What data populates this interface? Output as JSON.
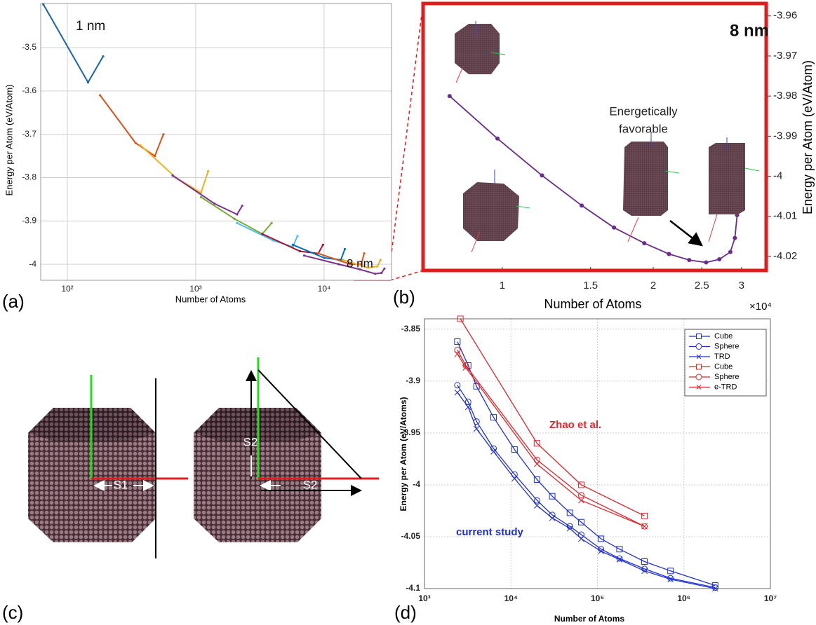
{
  "panel_labels": [
    "(a)",
    "(b)",
    "(c)",
    "(d)"
  ],
  "diagram": {
    "labels": [
      "S1",
      "S2",
      "S2"
    ]
  },
  "chart_data": [
    {
      "type": "line",
      "x_label": "Number of Atoms",
      "y_label": "Energy per Atom (eV/Atom)",
      "xscale": "log",
      "xlim": [
        62,
        33500
      ],
      "ylim": [
        -4.037,
        -3.398
      ],
      "xticks": [
        {
          "value": 100,
          "label": "10²"
        },
        {
          "value": 1000,
          "label": "10³"
        },
        {
          "value": 10000,
          "label": "10⁴"
        }
      ],
      "yticks": [
        -3.5,
        -3.6,
        -3.7,
        -3.8,
        -3.9,
        -4
      ],
      "grid": true,
      "y_axis_side": "left",
      "annotations": [
        {
          "text": "1 nm",
          "color": "#111111"
        },
        {
          "text": "8 nm",
          "color": "#111111"
        }
      ],
      "series": [
        {
          "color": "#1764ab",
          "x": [
            65,
            145,
            190
          ],
          "values": [
            -3.4,
            -3.58,
            -3.52
          ]
        },
        {
          "color": "#d95319",
          "x": [
            180,
            340,
            480,
            560
          ],
          "values": [
            -3.61,
            -3.72,
            -3.75,
            -3.7
          ]
        },
        {
          "color": "#edb120",
          "x": [
            370,
            700,
            1100,
            1250
          ],
          "values": [
            -3.725,
            -3.8,
            -3.835,
            -3.785
          ]
        },
        {
          "color": "#7e2f8e",
          "x": [
            660,
            1400,
            2100,
            2300
          ],
          "values": [
            -3.795,
            -3.86,
            -3.885,
            -3.865
          ]
        },
        {
          "color": "#77ac30",
          "x": [
            1100,
            2000,
            3300,
            3900
          ],
          "values": [
            -3.845,
            -3.895,
            -3.93,
            -3.905
          ]
        },
        {
          "color": "#4dbeee",
          "x": [
            2100,
            4000,
            5700,
            6200
          ],
          "values": [
            -3.905,
            -3.945,
            -3.96,
            -3.935
          ]
        },
        {
          "color": "#a2142f",
          "x": [
            3300,
            6500,
            9000,
            9800
          ],
          "values": [
            -3.93,
            -3.97,
            -3.975,
            -3.955
          ]
        },
        {
          "color": "#0072bd",
          "x": [
            5700,
            10000,
            13500,
            14500
          ],
          "values": [
            -3.955,
            -3.985,
            -3.99,
            -3.965
          ]
        },
        {
          "color": "#d95319",
          "x": [
            9000,
            16000,
            19500,
            20500
          ],
          "values": [
            -3.975,
            -4.0,
            -4.0,
            -3.975
          ]
        },
        {
          "color": "#edb120",
          "x": [
            14000,
            22000,
            26000,
            27500
          ],
          "values": [
            -3.99,
            -4.008,
            -4.005,
            -3.99
          ]
        },
        {
          "color": "#7e2f8e",
          "x": [
            7000,
            13000,
            19000,
            25000,
            28000,
            29500
          ],
          "values": [
            -3.98,
            -4.0,
            -4.012,
            -4.022,
            -4.02,
            -4.01
          ]
        }
      ]
    },
    {
      "type": "line",
      "x_label": "Number of Atoms",
      "x_offset_label": "×10⁴",
      "y_label": "Energy per Atom (eV/Atom)",
      "xscale": "log",
      "xlim": [
        0.695,
        3.36
      ],
      "ylim": [
        -4.0235,
        -3.9569
      ],
      "xticks": [
        1,
        1.5,
        2,
        2.5,
        3
      ],
      "yticks": [
        -3.96,
        -3.97,
        -3.98,
        -3.99,
        -4,
        -4.01,
        -4.02
      ],
      "grid": false,
      "y_axis_side": "right",
      "frame_color": "#e01b1b",
      "annotations": [
        {
          "text": "8 nm",
          "color": "#111111"
        },
        {
          "text": "Energetically",
          "color": "#222222"
        },
        {
          "text": "favorable",
          "color": "#222222"
        }
      ],
      "series": [
        {
          "color": "#6a2c8a",
          "marker": "dot",
          "x": [
            0.785,
            0.978,
            1.2,
            1.44,
            1.67,
            1.92,
            2.15,
            2.36,
            2.55,
            2.71,
            2.85,
            2.91,
            2.94
          ],
          "values": [
            -3.98,
            -3.9906,
            -3.9998,
            -4.0073,
            -4.0128,
            -4.0167,
            -4.0194,
            -4.0209,
            -4.0215,
            -4.0207,
            -4.0189,
            -4.0154,
            -4.0097
          ]
        }
      ]
    },
    {
      "type": "line",
      "x_label": "Number of Atoms",
      "y_label": "Energy per Atom (eV/Atoms)",
      "xscale": "log",
      "xlim": [
        1000,
        10000000
      ],
      "ylim": [
        -4.1,
        -3.84
      ],
      "xticks": [
        {
          "value": 1000,
          "label": "10³"
        },
        {
          "value": 10000,
          "label": "10⁴"
        },
        {
          "value": 100000,
          "label": "10⁵"
        },
        {
          "value": 1000000,
          "label": "10⁶"
        },
        {
          "value": 10000000,
          "label": "10⁷"
        }
      ],
      "yticks": [
        -3.85,
        -3.9,
        -3.95,
        -4,
        -4.05,
        -4.1
      ],
      "grid": true,
      "y_axis_side": "left",
      "legend": "upper right",
      "annotations": [
        {
          "text": "Zhao et al.",
          "color": "#e0262a"
        },
        {
          "text": "current study",
          "color": "#1f2fd6"
        }
      ],
      "series": [
        {
          "name": "Cube",
          "color": "#1f2fd6",
          "marker": "square",
          "x": [
            2400,
            3200,
            4000,
            6300,
            11000,
            20000,
            30000,
            48000,
            65000,
            110000,
            180000,
            350000,
            700000,
            2300000
          ],
          "values": [
            -3.862,
            -3.885,
            -3.905,
            -3.935,
            -3.966,
            -3.995,
            -4.011,
            -4.027,
            -4.036,
            -4.052,
            -4.062,
            -4.074,
            -4.083,
            -4.097
          ]
        },
        {
          "name": "Sphere",
          "color": "#1f2fd6",
          "marker": "circle",
          "x": [
            2400,
            3200,
            4000,
            6300,
            11000,
            20000,
            30000,
            48000,
            65000,
            110000,
            180000,
            350000,
            700000,
            2300000
          ],
          "values": [
            -3.904,
            -3.92,
            -3.939,
            -3.965,
            -3.99,
            -4.015,
            -4.029,
            -4.04,
            -4.048,
            -4.062,
            -4.071,
            -4.081,
            -4.09,
            -4.099
          ]
        },
        {
          "name": "TRD",
          "color": "#1f2fd6",
          "marker": "x",
          "x": [
            2400,
            3200,
            4000,
            6300,
            11000,
            20000,
            30000,
            48000,
            65000,
            110000,
            180000,
            350000,
            700000,
            2300000
          ],
          "values": [
            -3.911,
            -3.925,
            -3.946,
            -3.968,
            -3.994,
            -4.02,
            -4.032,
            -4.042,
            -4.052,
            -4.064,
            -4.072,
            -4.083,
            -4.091,
            -4.1
          ]
        },
        {
          "name": "Cube",
          "color": "#e0262a",
          "marker": "square",
          "x": [
            2600,
            20000,
            65000,
            350000
          ],
          "values": [
            -3.84,
            -3.96,
            -4.0,
            -4.03
          ]
        },
        {
          "name": "Sphere",
          "color": "#e0262a",
          "marker": "circle",
          "x": [
            2400,
            3000,
            20000,
            65000,
            350000
          ],
          "values": [
            -3.87,
            -3.885,
            -3.976,
            -4.01,
            -4.04
          ]
        },
        {
          "name": "e-TRD",
          "color": "#e0262a",
          "marker": "x",
          "x": [
            2400,
            3000,
            20000,
            65000,
            350000
          ],
          "values": [
            -3.874,
            -3.887,
            -3.98,
            -4.015,
            -4.04
          ]
        }
      ]
    }
  ]
}
